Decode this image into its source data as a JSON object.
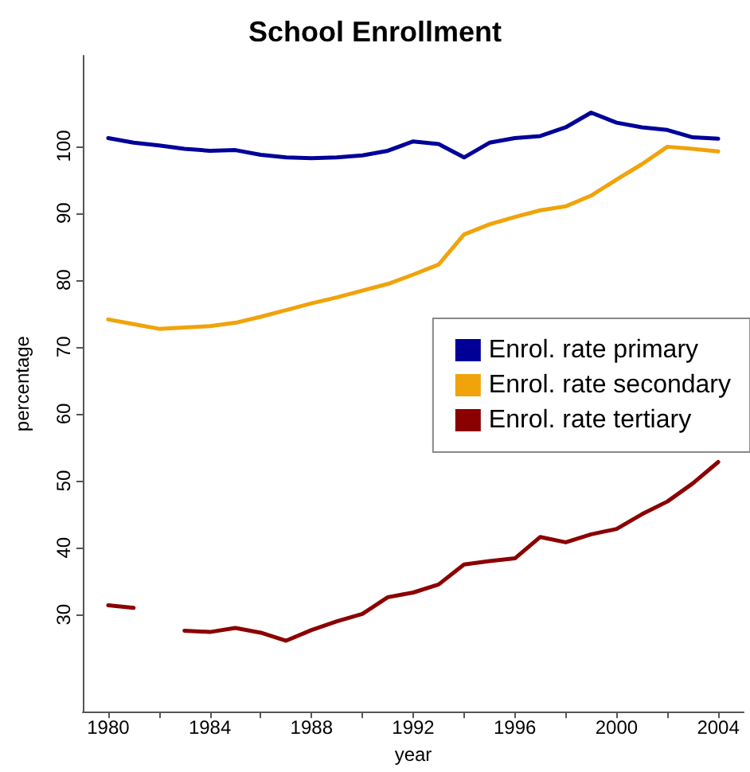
{
  "chart_data": {
    "type": "line",
    "title": "School Enrollment",
    "xlabel": "year",
    "ylabel": "percentage",
    "x": [
      1980,
      1981,
      1982,
      1983,
      1984,
      1985,
      1986,
      1987,
      1988,
      1989,
      1990,
      1991,
      1992,
      1993,
      1994,
      1995,
      1996,
      1997,
      1998,
      1999,
      2000,
      2001,
      2002,
      2003,
      2004
    ],
    "series": [
      {
        "name": "Enrol. rate primary",
        "color": "#000099",
        "values": [
          101.2,
          100.5,
          100.1,
          99.6,
          99.3,
          99.4,
          98.7,
          98.3,
          98.2,
          98.3,
          98.6,
          99.3,
          100.7,
          100.3,
          98.3,
          100.5,
          101.2,
          101.5,
          102.8,
          105,
          103.5,
          102.8,
          102.4,
          101.3,
          101.1
        ]
      },
      {
        "name": "Enrol. rate secondary",
        "color": "#f0a30a",
        "values": [
          74.1,
          73.4,
          72.7,
          72.9,
          73.1,
          73.6,
          74.5,
          75.5,
          76.5,
          77.4,
          78.4,
          79.4,
          80.8,
          82.3,
          86.8,
          88.3,
          89.4,
          90.4,
          91.0,
          92.6,
          95.0,
          97.3,
          99.9,
          99.6,
          99.2
        ]
      },
      {
        "name": "Enrol. rate tertiary",
        "color": "#8b0000",
        "values": [
          31.4,
          31.0,
          null,
          27.6,
          27.4,
          28.0,
          27.3,
          26.1,
          27.7,
          29.0,
          30.1,
          32.6,
          33.3,
          34.5,
          37.5,
          38.0,
          38.4,
          41.6,
          40.8,
          42.0,
          42.8,
          45.0,
          46.9,
          49.6,
          52.8
        ]
      }
    ],
    "xlim": [
      1979,
      2005
    ],
    "xticks": [
      1980,
      {
        "value": 1982,
        "label": null
      },
      1984,
      {
        "value": 1986,
        "label": null
      },
      1988,
      {
        "value": 1990,
        "label": null
      },
      1992,
      {
        "value": 1994,
        "label": null
      },
      1996,
      {
        "value": 1998,
        "label": null
      },
      2000,
      {
        "value": 2002,
        "label": null
      },
      2004
    ],
    "ylim": [
      15.5,
      113.5
    ],
    "yticks": [
      30,
      40,
      50,
      60,
      70,
      80,
      90,
      100
    ],
    "grid": false,
    "legend": "right",
    "marker": "none",
    "line_style": "solid"
  }
}
